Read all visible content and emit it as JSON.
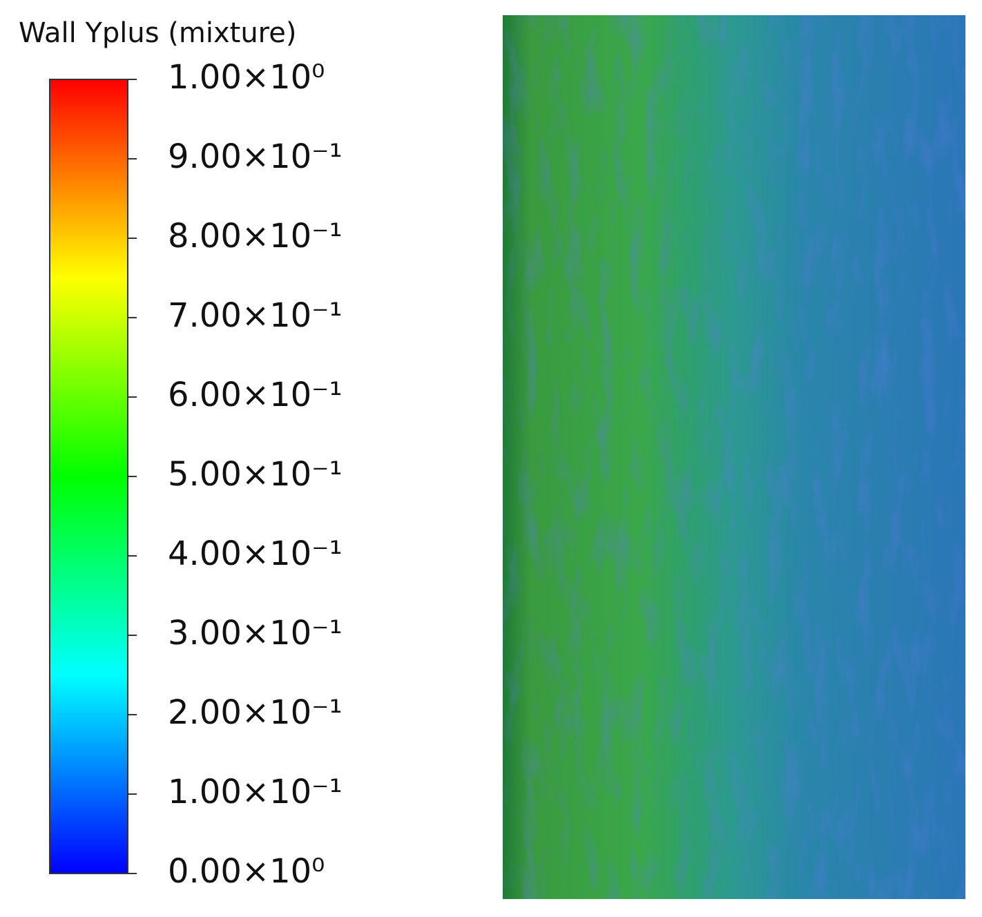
{
  "chart_data": {
    "type": "contour",
    "title": "Wall Yplus (mixture)",
    "clim": [
      0,
      1
    ],
    "cticks": [
      {
        "value": 0,
        "label": "0.00×10⁰"
      },
      {
        "value": 0.1,
        "label": "1.00×10⁻¹"
      },
      {
        "value": 0.2,
        "label": "2.00×10⁻¹"
      },
      {
        "value": 0.3,
        "label": "3.00×10⁻¹"
      },
      {
        "value": 0.4,
        "label": "4.00×10⁻¹"
      },
      {
        "value": 0.5,
        "label": "5.00×10⁻¹"
      },
      {
        "value": 0.6,
        "label": "6.00×10⁻¹"
      },
      {
        "value": 0.7,
        "label": "7.00×10⁻¹"
      },
      {
        "value": 0.8,
        "label": "8.00×10⁻¹"
      },
      {
        "value": 0.9,
        "label": "9.00×10⁻¹"
      },
      {
        "value": 1,
        "label": "1.00×10⁰"
      }
    ],
    "colormap": [
      "#0000ff",
      "#00ffff",
      "#00ff00",
      "#ffff00",
      "#ff0000"
    ]
  }
}
